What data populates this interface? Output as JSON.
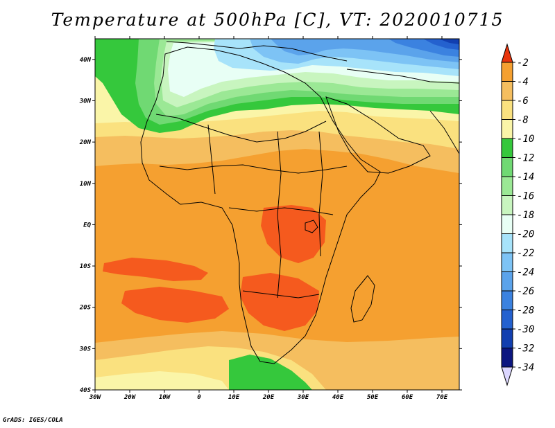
{
  "title": "Temperature at 500hPa [C], VT: 2020010715",
  "credit": "GrADS: IGES/COLA",
  "map": {
    "variable": "Temperature at 500hPa",
    "units": "C",
    "valid_time": "2020010715",
    "lon_range": [
      -30,
      75
    ],
    "lat_range": [
      -40,
      45
    ],
    "lon_ticks": [
      "30W",
      "20W",
      "10W",
      "0",
      "10E",
      "20E",
      "30E",
      "40E",
      "50E",
      "60E",
      "70E"
    ],
    "lat_ticks": [
      "40S",
      "30S",
      "20S",
      "10S",
      "EQ",
      "10N",
      "20N",
      "30N",
      "40N"
    ],
    "ocean_color": "#f5a030"
  },
  "colorbar": {
    "labels": [
      "-2",
      "-4",
      "-6",
      "-8",
      "-10",
      "-12",
      "-14",
      "-16",
      "-18",
      "-20",
      "-22",
      "-24",
      "-26",
      "-28",
      "-30",
      "-32",
      "-34"
    ],
    "colors": [
      "#f55a1e",
      "#f5a030",
      "#f5be5f",
      "#fae17f",
      "#faf5a8",
      "#35c83c",
      "#70d973",
      "#9be895",
      "#c8f5bf",
      "#e8fff5",
      "#a7e3fa",
      "#7dc3f5",
      "#5ba3eb",
      "#3b82e0",
      "#2461cf",
      "#123fb0",
      "#0c1680"
    ],
    "top_arrow_color": "#e8340c",
    "bottom_arrow_color": "#dcd7ff"
  }
}
